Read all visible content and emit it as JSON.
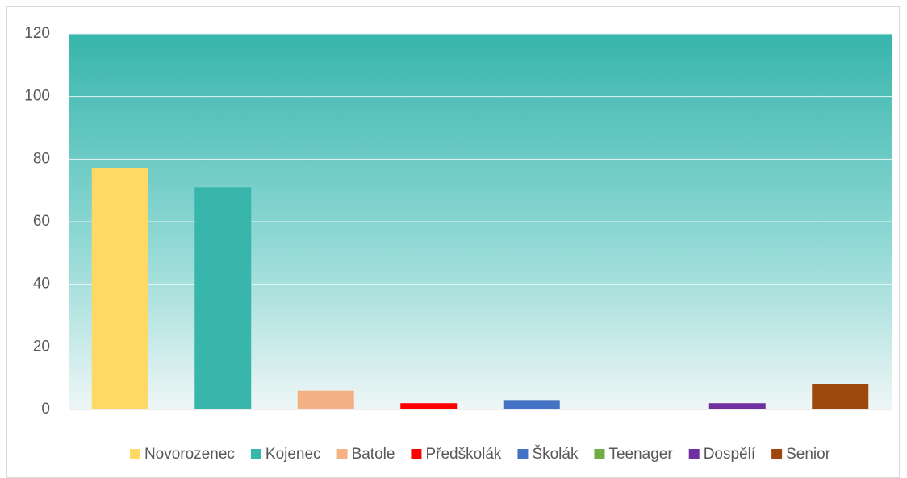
{
  "chart_data": {
    "type": "bar",
    "series": [
      {
        "name": "Novorozenec",
        "color": "#ffd966",
        "values": [
          77
        ]
      },
      {
        "name": "Kojenec",
        "color": "#38b6ac",
        "values": [
          71
        ]
      },
      {
        "name": "Batole",
        "color": "#f4b183",
        "values": [
          6
        ]
      },
      {
        "name": "Předškolák",
        "color": "#ff0000",
        "values": [
          2
        ]
      },
      {
        "name": "Školák",
        "color": "#4472c4",
        "values": [
          3
        ]
      },
      {
        "name": "Teenager",
        "color": "#70ad47",
        "values": [
          0
        ]
      },
      {
        "name": "Dospělí",
        "color": "#7030a0",
        "values": [
          2
        ]
      },
      {
        "name": "Senior",
        "color": "#9e480e",
        "values": [
          8
        ]
      }
    ],
    "ylim": [
      0,
      120
    ],
    "yticks": [
      0,
      20,
      40,
      60,
      80,
      100,
      120
    ],
    "grid": true,
    "legend": "bottom"
  }
}
